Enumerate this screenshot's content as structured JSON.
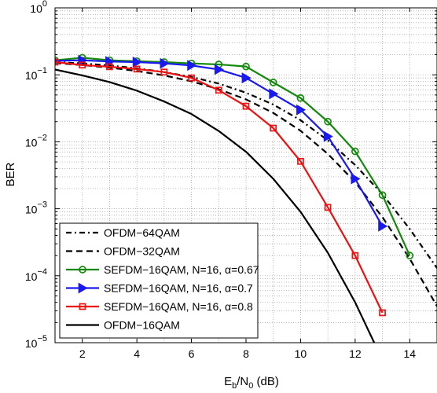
{
  "chart_data": {
    "type": "line",
    "title": "",
    "xlabel": {
      "main": "E",
      "sub1": "b",
      "mid": "/N",
      "sub2": "0",
      "tail": " (dB)"
    },
    "ylabel": "BER",
    "xlim": [
      1,
      15
    ],
    "ylim": [
      1e-05,
      1
    ],
    "yscale": "log",
    "grid": true,
    "legend_position": "bottom-left",
    "x_ticks": [
      {
        "value": 2,
        "label": "2"
      },
      {
        "value": 4,
        "label": "4"
      },
      {
        "value": 6,
        "label": "6"
      },
      {
        "value": 8,
        "label": "8"
      },
      {
        "value": 10,
        "label": "10"
      },
      {
        "value": 12,
        "label": "12"
      },
      {
        "value": 14,
        "label": "14"
      }
    ],
    "y_ticks": [
      {
        "value": 1,
        "base": "10",
        "exp": "0"
      },
      {
        "value": 0.1,
        "base": "10",
        "exp": "−1"
      },
      {
        "value": 0.01,
        "base": "10",
        "exp": "−2"
      },
      {
        "value": 0.001,
        "base": "10",
        "exp": "−3"
      },
      {
        "value": 0.0001,
        "base": "10",
        "exp": "−4"
      },
      {
        "value": 1e-05,
        "base": "10",
        "exp": "−5"
      }
    ],
    "series": [
      {
        "name": "OFDM−64QAM",
        "color": "#000000",
        "dash": "dashdot",
        "marker": "none",
        "x": [
          1,
          2,
          3,
          4,
          5,
          6,
          7,
          8,
          9,
          10,
          11,
          12,
          13,
          14,
          15
        ],
        "y": [
          0.155,
          0.148,
          0.138,
          0.125,
          0.11,
          0.093,
          0.074,
          0.054,
          0.036,
          0.021,
          0.0105,
          0.0045,
          0.00165,
          0.0005,
          0.00013
        ]
      },
      {
        "name": "OFDM−32QAM",
        "color": "#000000",
        "dash": "dashed",
        "marker": "none",
        "x": [
          1,
          2,
          3,
          4,
          5,
          6,
          7,
          8,
          9,
          10,
          11,
          12,
          13,
          14,
          15
        ],
        "y": [
          0.15,
          0.14,
          0.128,
          0.114,
          0.098,
          0.08,
          0.061,
          0.043,
          0.027,
          0.0146,
          0.0066,
          0.0025,
          0.00075,
          0.00018,
          3.5e-05
        ]
      },
      {
        "name": "SEFDM−16QAM, N=16, α=0.67",
        "color": "#138a0b",
        "dash": "solid",
        "marker": "circle",
        "x": [
          1,
          2,
          3,
          4,
          5,
          6,
          7,
          8,
          9,
          10,
          11,
          12,
          13,
          14
        ],
        "y": [
          0.165,
          0.18,
          0.165,
          0.16,
          0.155,
          0.148,
          0.143,
          0.133,
          0.077,
          0.045,
          0.02,
          0.0072,
          0.0016,
          0.0002
        ]
      },
      {
        "name": "SEFDM−16QAM, N=16, α=0.7",
        "color": "#1a1aee",
        "dash": "solid",
        "marker": "triangle-right",
        "x": [
          1,
          2,
          3,
          4,
          5,
          6,
          7,
          8,
          9,
          10,
          11,
          12,
          13
        ],
        "y": [
          0.162,
          0.165,
          0.158,
          0.155,
          0.148,
          0.138,
          0.12,
          0.09,
          0.052,
          0.03,
          0.012,
          0.0028,
          0.00055
        ]
      },
      {
        "name": "SEFDM−16QAM, N=16, α=0.8",
        "color": "#ee1111",
        "dash": "solid",
        "marker": "square",
        "x": [
          1,
          2,
          3,
          4,
          5,
          6,
          7,
          8,
          9,
          10,
          11,
          12,
          13
        ],
        "y": [
          0.155,
          0.14,
          0.132,
          0.122,
          0.11,
          0.09,
          0.059,
          0.034,
          0.016,
          0.0051,
          0.00105,
          0.0002,
          2.8e-05
        ]
      },
      {
        "name": "OFDM−16QAM",
        "color": "#000000",
        "dash": "solid",
        "marker": "none",
        "x": [
          1,
          2,
          3,
          4,
          5,
          6,
          7,
          8,
          9,
          10,
          11,
          12,
          13
        ],
        "y": [
          0.12,
          0.098,
          0.078,
          0.058,
          0.04,
          0.026,
          0.0145,
          0.0071,
          0.0028,
          0.0009,
          0.00022,
          4e-05,
          5.5e-06
        ]
      }
    ]
  }
}
